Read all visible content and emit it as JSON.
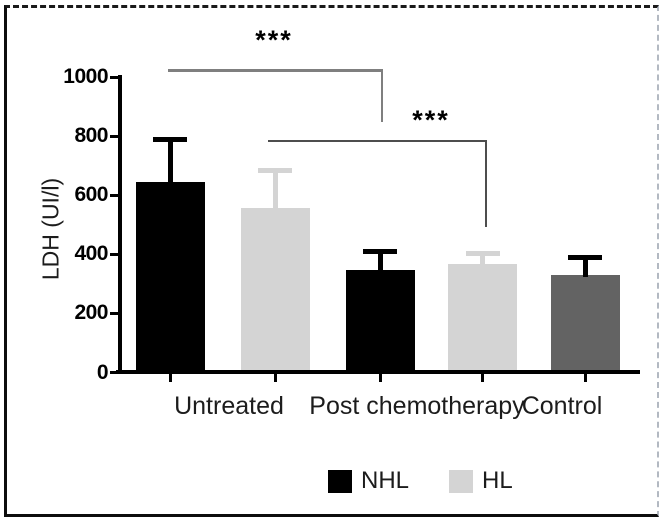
{
  "chart_data": {
    "type": "bar",
    "title": "",
    "xlabel": "",
    "ylabel": "LDH (UI/l)",
    "ylim": [
      0,
      1000
    ],
    "yticks": [
      0,
      200,
      400,
      600,
      800,
      1000
    ],
    "grid": false,
    "error_bars": "upper-only",
    "categories": [
      "Untreated",
      "Post chemotherapy",
      "Control"
    ],
    "bars": [
      {
        "category": "Untreated",
        "series": "NHL",
        "value": 645,
        "error_plus": 145,
        "color": "#000000",
        "error_color": "#000000"
      },
      {
        "category": "Untreated",
        "series": "HL",
        "value": 557,
        "error_plus": 125,
        "color": "#d4d4d4",
        "error_color": "#d4d4d4"
      },
      {
        "category": "Post chemotherapy",
        "series": "NHL",
        "value": 348,
        "error_plus": 60,
        "color": "#000000",
        "error_color": "#000000"
      },
      {
        "category": "Post chemotherapy",
        "series": "HL",
        "value": 368,
        "error_plus": 35,
        "color": "#d4d4d4",
        "error_color": "#d4d4d4"
      },
      {
        "category": "Control",
        "series": "Control",
        "value": 330,
        "error_plus": 58,
        "color": "#636363",
        "error_color": "#000000"
      }
    ],
    "legend": {
      "position": "bottom",
      "items": [
        {
          "label": "NHL",
          "color": "#000000"
        },
        {
          "label": "HL",
          "color": "#d4d4d4"
        }
      ]
    },
    "significance": [
      {
        "label": "***",
        "compares": [
          "Untreated NHL",
          "Post chemotherapy NHL"
        ]
      },
      {
        "label": "***",
        "compares": [
          "Untreated HL",
          "Post chemotherapy HL"
        ]
      }
    ]
  }
}
